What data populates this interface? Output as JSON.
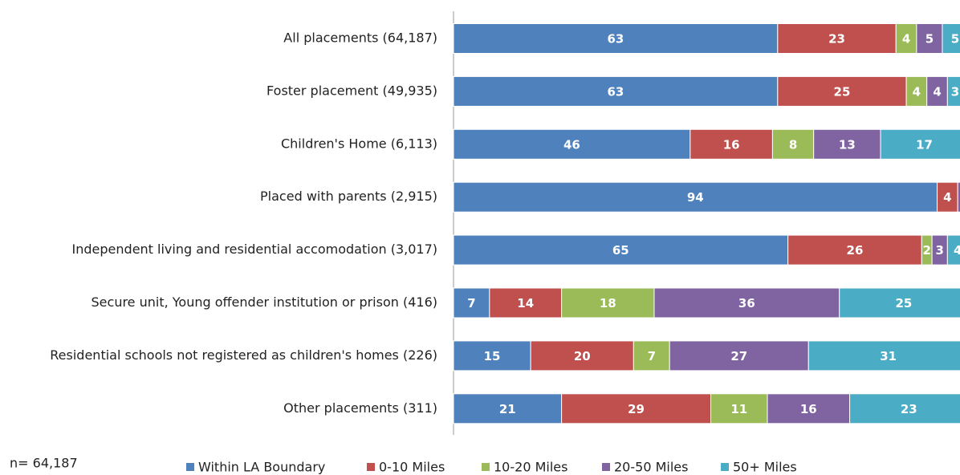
{
  "chart_data": {
    "type": "stacked_bar_horizontal",
    "annotation": "n= 64,187",
    "categories": [
      "All placements (64,187)",
      "Foster placement (49,935)",
      "Children's Home (6,113)",
      "Placed with parents (2,915)",
      "Independent living and residential accomodation (3,017)",
      "Secure unit, Young offender institution or prison (416)",
      "Residential schools not registered as children's homes (226)",
      "Other placements (311)"
    ],
    "series": [
      {
        "name": "Within LA Boundary",
        "color": "#4f81bd",
        "values": [
          63,
          63,
          46,
          94,
          65,
          7,
          15,
          21
        ]
      },
      {
        "name": "0-10 Miles",
        "color": "#c0504d",
        "values": [
          23,
          25,
          16,
          4,
          26,
          14,
          20,
          29
        ]
      },
      {
        "name": "10-20 Miles",
        "color": "#9bbb59",
        "values": [
          4,
          4,
          8,
          0,
          2,
          18,
          7,
          11
        ]
      },
      {
        "name": "20-50 Miles",
        "color": "#8064a2",
        "values": [
          5,
          4,
          13,
          1,
          3,
          36,
          27,
          16
        ]
      },
      {
        "name": "50+ Miles",
        "color": "#4bacc6",
        "values": [
          5,
          3,
          17,
          1,
          4,
          25,
          31,
          23
        ]
      }
    ],
    "xlim": [
      0,
      100
    ],
    "legend": "bottom"
  }
}
